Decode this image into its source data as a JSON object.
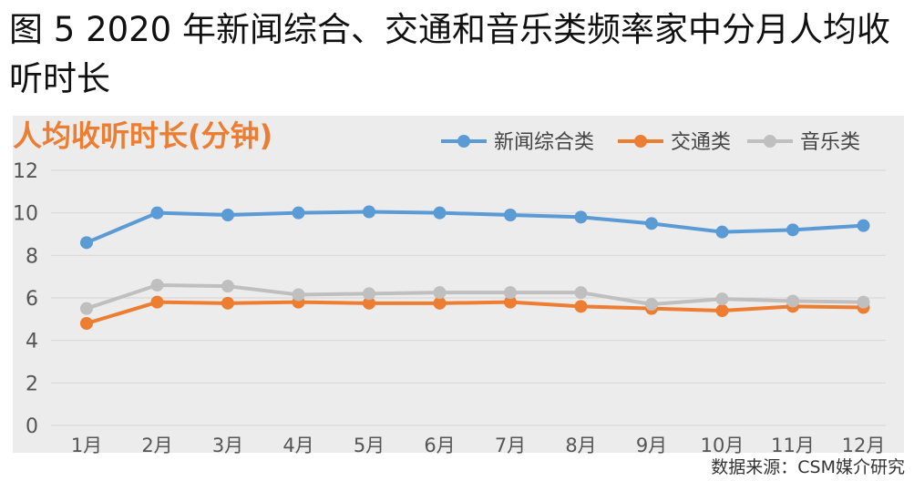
{
  "figure": {
    "title": "图 5  2020 年新闻综合、交通和音乐类频率家中分月人均收听时长",
    "source": "数据来源：CSM媒介研究"
  },
  "chart_data": {
    "type": "line",
    "title": "人均收听时长(分钟)",
    "xlabel": "",
    "ylabel": "",
    "categories": [
      "1月",
      "2月",
      "3月",
      "4月",
      "5月",
      "6月",
      "7月",
      "8月",
      "9月",
      "10月",
      "11月",
      "12月"
    ],
    "ylim": [
      0,
      12
    ],
    "yticks": [
      0,
      2,
      4,
      6,
      8,
      10,
      12
    ],
    "grid": true,
    "legend": "top-right",
    "series": [
      {
        "name": "新闻综合类",
        "color": "#5b9bd5",
        "values": [
          8.6,
          10.0,
          9.9,
          10.0,
          10.05,
          10.0,
          9.9,
          9.8,
          9.5,
          9.1,
          9.2,
          9.4
        ]
      },
      {
        "name": "交通类",
        "color": "#ed7d31",
        "values": [
          4.8,
          5.8,
          5.75,
          5.8,
          5.75,
          5.75,
          5.8,
          5.6,
          5.5,
          5.4,
          5.6,
          5.55
        ]
      },
      {
        "name": "音乐类",
        "color": "#bfbfbf",
        "values": [
          5.5,
          6.6,
          6.55,
          6.15,
          6.2,
          6.25,
          6.25,
          6.25,
          5.7,
          5.95,
          5.85,
          5.8
        ]
      }
    ]
  }
}
